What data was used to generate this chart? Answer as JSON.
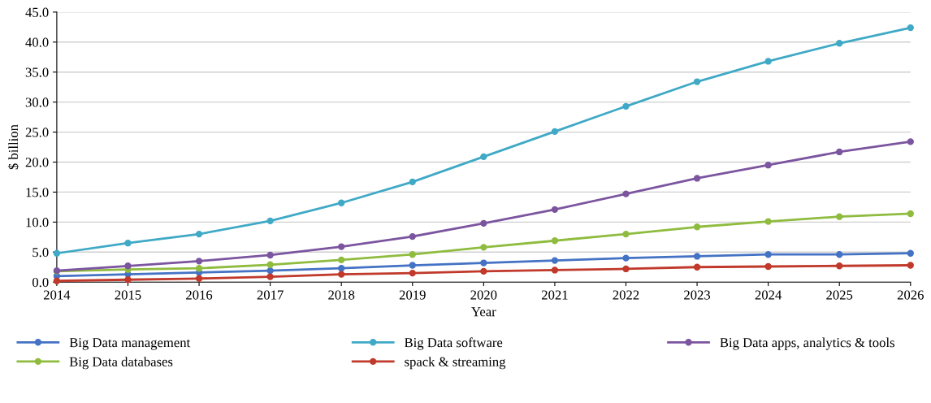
{
  "chart_data": {
    "type": "line",
    "xlabel": "Year",
    "ylabel": "$ billion",
    "x": [
      2014,
      2015,
      2016,
      2017,
      2018,
      2019,
      2020,
      2021,
      2022,
      2023,
      2024,
      2025,
      2026
    ],
    "series": [
      {
        "name": "Big Data management",
        "color": "#4472c4",
        "values": [
          1.0,
          1.3,
          1.6,
          1.9,
          2.3,
          2.8,
          3.2,
          3.6,
          4.0,
          4.3,
          4.6,
          4.6,
          4.8
        ]
      },
      {
        "name": "Big Data databases",
        "color": "#8fbc3f",
        "values": [
          1.8,
          2.1,
          2.3,
          2.9,
          3.7,
          4.6,
          5.8,
          6.9,
          8.0,
          9.2,
          10.1,
          10.9,
          11.4
        ]
      },
      {
        "name": "Big Data software",
        "color": "#3fa9c6",
        "values": [
          4.8,
          6.5,
          8.0,
          10.2,
          13.2,
          16.7,
          20.9,
          25.1,
          29.3,
          33.4,
          36.8,
          39.8,
          42.4
        ]
      },
      {
        "name": "spack & streaming",
        "color": "#c0392b",
        "values": [
          0.2,
          0.4,
          0.6,
          0.9,
          1.3,
          1.5,
          1.8,
          2.0,
          2.2,
          2.5,
          2.6,
          2.7,
          2.8
        ]
      },
      {
        "name": "Big Data apps, analytics & tools",
        "color": "#7b559f",
        "values": [
          1.9,
          2.7,
          3.5,
          4.5,
          5.9,
          7.6,
          9.8,
          12.1,
          14.7,
          17.3,
          19.5,
          21.7,
          23.4
        ]
      }
    ],
    "xlim": [
      2014,
      2026
    ],
    "xticks": [
      2014,
      2015,
      2016,
      2017,
      2018,
      2019,
      2020,
      2021,
      2022,
      2023,
      2024,
      2025,
      2026
    ],
    "ylim": [
      0,
      45
    ],
    "yticks": [
      {
        "value": 0,
        "label": "0.0"
      },
      {
        "value": 5,
        "label": "5.0"
      },
      {
        "value": 10,
        "label": "10.0"
      },
      {
        "value": 15,
        "label": "15.0"
      },
      {
        "value": 20,
        "label": "20.0"
      },
      {
        "value": 25,
        "label": "25.0"
      },
      {
        "value": 30,
        "label": "30.0"
      },
      {
        "value": 35,
        "label": "35.0"
      },
      {
        "value": 40,
        "label": "40.0"
      },
      {
        "value": 45,
        "label": "45.0"
      }
    ],
    "grid": "y",
    "legend": "bottom",
    "marker": "circle",
    "line_style": "solid"
  }
}
